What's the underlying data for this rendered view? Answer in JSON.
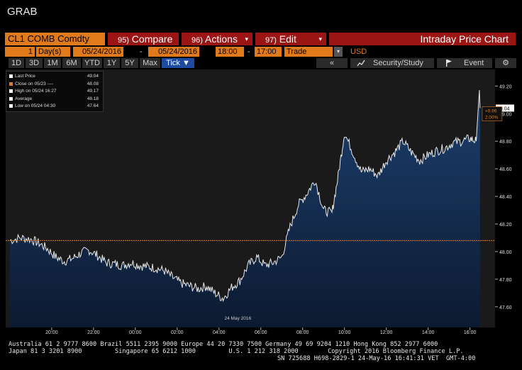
{
  "app_title": "GRAB",
  "toolbar": {
    "ticker": "CL1 COMB Comdty",
    "compare_num": "95)",
    "compare_label": "Compare",
    "actions_num": "96)",
    "actions_label": "Actions",
    "edit_num": "97)",
    "edit_label": "Edit",
    "chart_type": "Intraday Price Chart",
    "interval_value": "1",
    "interval_unit": "Day(s)",
    "start_date": "05/24/2016",
    "end_date": "05/24/2016",
    "start_time": "18:00",
    "end_time": "17:00",
    "data_type": "Trade",
    "currency": "USD",
    "range_tabs": [
      "1D",
      "3D",
      "1M",
      "6M",
      "YTD",
      "1Y",
      "5Y",
      "Max",
      "Tick"
    ],
    "active_tab": "Tick",
    "collapse_label": "«",
    "security_label": "Security/Study",
    "event_label": "Event",
    "gear_icon": "gear-icon",
    "flag_icon": "flag-icon",
    "chart_icon": "line-chart-icon"
  },
  "legend": [
    {
      "label": "Last Price",
      "value": "49.04",
      "color": "#ffffff"
    },
    {
      "label": "Close on 05/23 ----",
      "value": "48.08",
      "color": "#e07a1a"
    },
    {
      "label": "High on 05/24 16:27",
      "value": "49.17",
      "color": "#ffffff"
    },
    {
      "label": "Average",
      "value": "48.18",
      "color": "#ffffff"
    },
    {
      "label": "Low on 05/24 04:30",
      "value": "47.64",
      "color": "#ffffff"
    }
  ],
  "annotations": {
    "last_price_tag": "49.04",
    "change": "+0.96",
    "change_pct": "2.00%",
    "date_label": "24 May 2016"
  },
  "chart_data": {
    "type": "area",
    "title": "",
    "xlabel": "",
    "ylabel": "",
    "x_ticks": [
      "20:00",
      "22:00",
      "00:00",
      "02:00",
      "04:00",
      "06:00",
      "08:00",
      "10:00",
      "12:00",
      "14:00",
      "16:00"
    ],
    "y_ticks": [
      "47.60",
      "47.80",
      "48.00",
      "48.20",
      "48.40",
      "48.60",
      "48.80",
      "49.00",
      "49.20"
    ],
    "ylim": [
      47.45,
      49.32
    ],
    "x_range_hours": [
      -6.2,
      17.2
    ],
    "previous_close": 48.08,
    "last_price": 49.04,
    "grid": false,
    "legend_position": "top-left",
    "series": [
      {
        "name": "Last Price",
        "x": [
          -6.0,
          -5.5,
          -5.0,
          -4.6,
          -4.2,
          -3.8,
          -3.4,
          -3.0,
          -2.6,
          -2.2,
          -1.8,
          -1.4,
          -1.0,
          -0.6,
          -0.2,
          0.2,
          0.6,
          1.0,
          1.4,
          1.8,
          2.2,
          2.6,
          3.0,
          3.4,
          3.8,
          4.2,
          4.6,
          5.0,
          5.4,
          5.8,
          6.2,
          6.6,
          7.0,
          7.4,
          7.8,
          8.2,
          8.6,
          9.0,
          9.4,
          9.7,
          10.0,
          10.4,
          10.8,
          11.2,
          11.6,
          12.0,
          12.4,
          12.8,
          13.2,
          13.6,
          14.0,
          14.4,
          14.8,
          15.2,
          15.6,
          16.0,
          16.3,
          16.45
        ],
        "values": [
          48.08,
          48.1,
          48.09,
          48.06,
          48.02,
          47.96,
          47.93,
          47.95,
          47.99,
          48.01,
          47.97,
          47.92,
          47.91,
          47.9,
          47.92,
          47.9,
          47.89,
          47.88,
          47.86,
          47.81,
          47.77,
          47.75,
          47.73,
          47.75,
          47.7,
          47.66,
          47.74,
          47.79,
          47.9,
          47.96,
          47.9,
          47.92,
          47.96,
          48.18,
          48.34,
          48.42,
          48.52,
          48.3,
          48.28,
          48.55,
          48.86,
          48.72,
          48.58,
          48.6,
          48.55,
          48.66,
          48.72,
          48.8,
          48.72,
          48.66,
          48.7,
          48.73,
          48.75,
          48.79,
          48.8,
          48.82,
          48.8,
          49.17
        ]
      }
    ]
  }
}
